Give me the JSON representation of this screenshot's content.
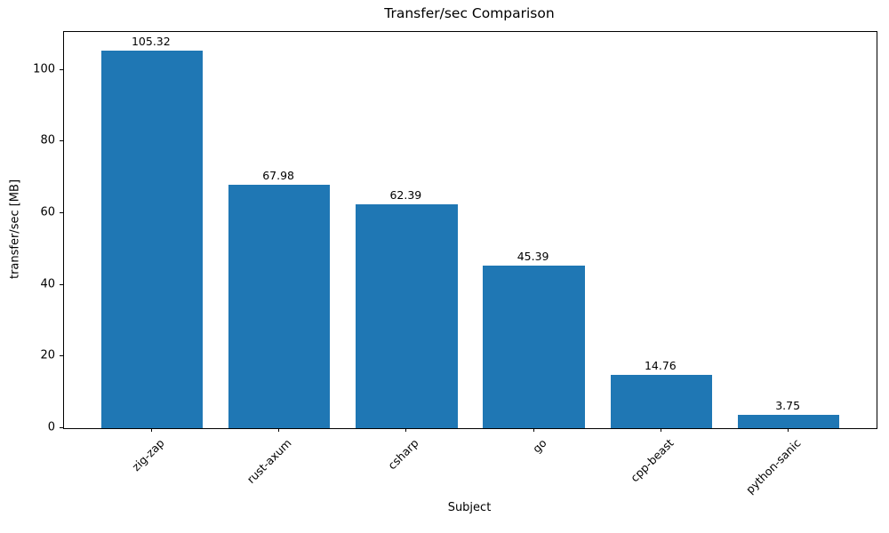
{
  "chart_data": {
    "type": "bar",
    "title": "Transfer/sec Comparison",
    "xlabel": "Subject",
    "ylabel": "transfer/sec [MB]",
    "categories": [
      "zig-zap",
      "rust-axum",
      "csharp",
      "go",
      "cpp-beast",
      "python-sanic"
    ],
    "values": [
      105.32,
      67.98,
      62.39,
      45.39,
      14.76,
      3.75
    ],
    "bar_labels": [
      "105.32",
      "67.98",
      "62.39",
      "45.39",
      "14.76",
      "3.75"
    ],
    "yticks": [
      0,
      20,
      40,
      60,
      80,
      100
    ],
    "ylim": [
      0,
      110.6
    ],
    "bar_color": "#1f77b4",
    "text_color": "#000000",
    "spine_color": "#000000",
    "grid": false,
    "legend": null,
    "x_tick_rotation_deg": 45
  }
}
